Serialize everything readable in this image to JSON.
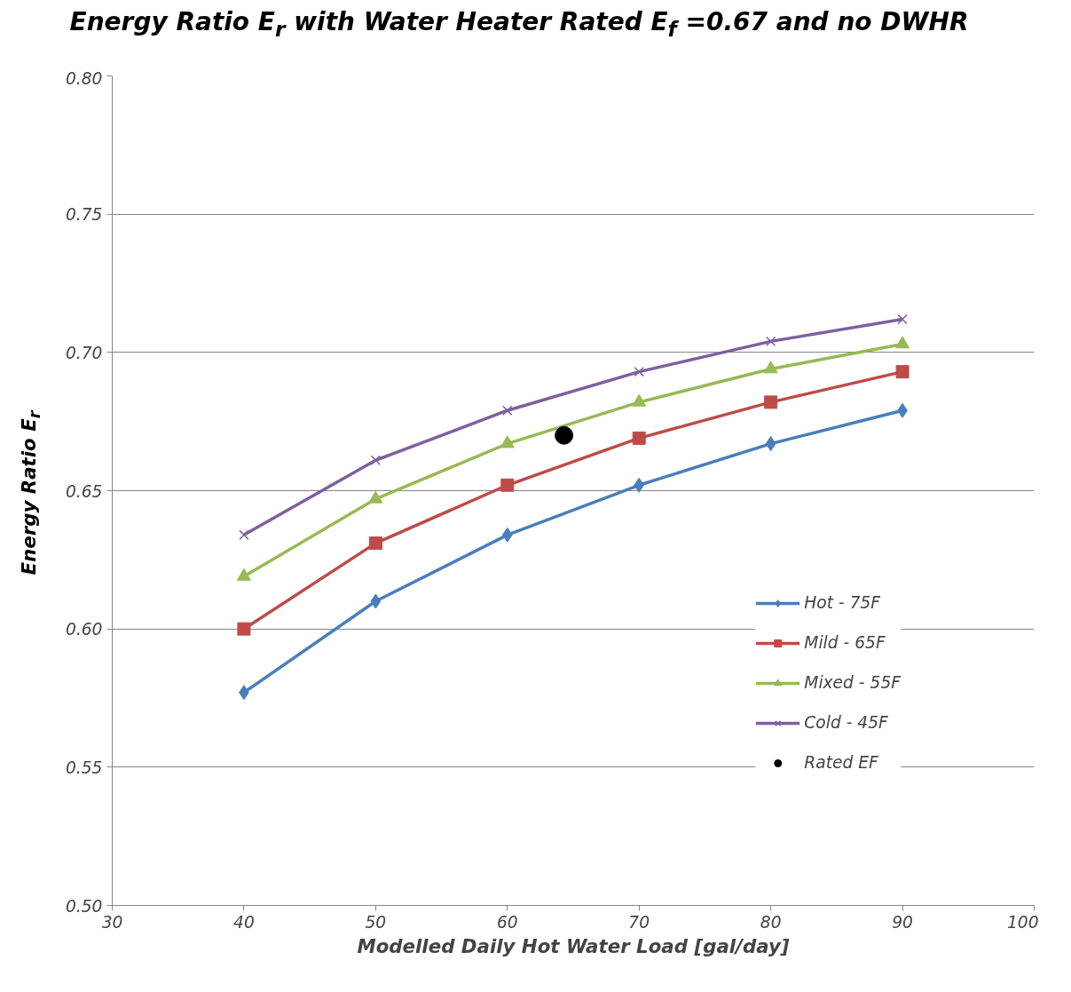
{
  "chart_data": {
    "type": "line",
    "title": "Energy Ratio E$_{r}$ with Water Heater Rated E$_{f}$ =0.67 and no DWHR",
    "xlabel": "Modelled Daily Hot Water Load [gal/day]",
    "ylabel": "Energy Ratio E$_{r}$",
    "x": [
      40,
      50,
      60,
      70,
      80,
      90
    ],
    "series": [
      {
        "name": "Hot - 75F",
        "color": "#4a7ebb",
        "marker": "diamond",
        "values": [
          0.577,
          0.61,
          0.634,
          0.652,
          0.667,
          0.679
        ]
      },
      {
        "name": "Mild - 65F",
        "color": "#be4b48",
        "marker": "square",
        "values": [
          0.6,
          0.631,
          0.652,
          0.669,
          0.682,
          0.693
        ]
      },
      {
        "name": "Mixed - 55F",
        "color": "#98b954",
        "marker": "triangle",
        "values": [
          0.619,
          0.647,
          0.667,
          0.682,
          0.694,
          0.703
        ]
      },
      {
        "name": "Cold - 45F",
        "color": "#7d60a0",
        "marker": "cross",
        "values": [
          0.634,
          0.661,
          0.679,
          0.693,
          0.704,
          0.712
        ]
      },
      {
        "name": "Rated EF",
        "type": "scatter",
        "color": "#000000",
        "marker": "circle",
        "x": [
          64.3
        ],
        "values": [
          0.67
        ]
      }
    ],
    "xlim": [
      30,
      100
    ],
    "xticks": [
      30,
      40,
      50,
      60,
      70,
      80,
      90,
      100
    ],
    "ylim": [
      0.5,
      0.8
    ],
    "yticks": [
      {
        "value": 0.5,
        "label": "0.50"
      },
      {
        "value": 0.55,
        "label": "0.55"
      },
      {
        "value": 0.6,
        "label": "0.60"
      },
      {
        "value": 0.65,
        "label": "0.65"
      },
      {
        "value": 0.7,
        "label": "0.70"
      },
      {
        "value": 0.75,
        "label": "0.75"
      },
      {
        "value": 0.8,
        "label": "0.80"
      }
    ],
    "grid": "y",
    "legend": "right"
  }
}
